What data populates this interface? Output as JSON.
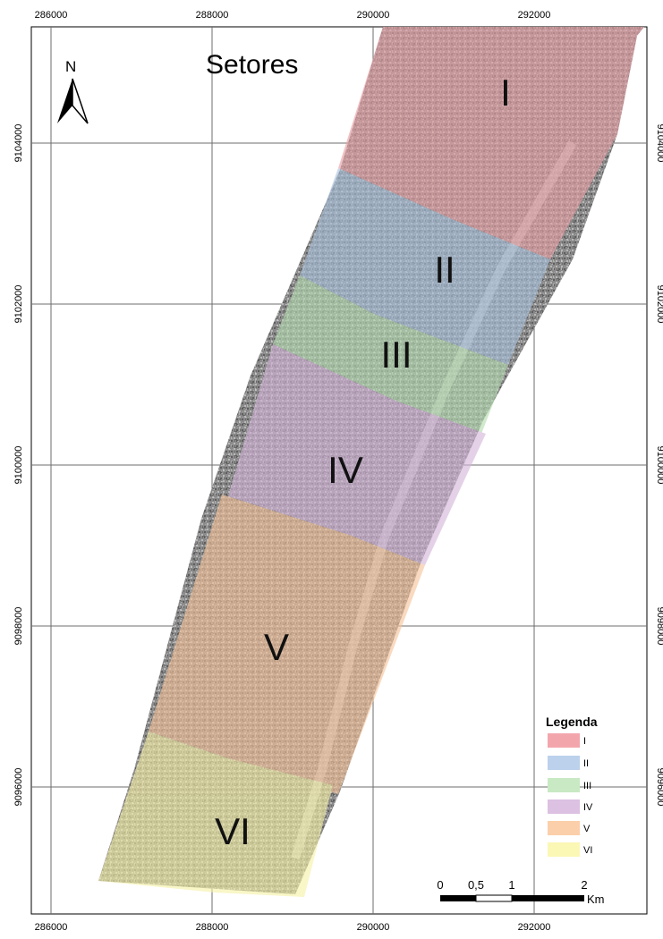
{
  "title": "Setores",
  "north_arrow": {
    "label": "N",
    "icon": "north-arrow-icon"
  },
  "grid": {
    "x_labels": [
      "286000",
      "288000",
      "290000",
      "292000"
    ],
    "y_labels": [
      "9104000",
      "9102000",
      "9100000",
      "9098000",
      "9096000"
    ]
  },
  "sectors": [
    {
      "label": "I",
      "color": "#e8a0a4"
    },
    {
      "label": "II",
      "color": "#a9c1dc"
    },
    {
      "label": "III",
      "color": "#b5dcb0"
    },
    {
      "label": "IV",
      "color": "#d4b5d9"
    },
    {
      "label": "V",
      "color": "#f5c39a"
    },
    {
      "label": "VI",
      "color": "#f6f0a6"
    }
  ],
  "legend": {
    "title": "Legenda",
    "items": [
      {
        "label": "I",
        "color": "#f2a6ac"
      },
      {
        "label": "II",
        "color": "#bcd1ec"
      },
      {
        "label": "III",
        "color": "#c8e9c3"
      },
      {
        "label": "IV",
        "color": "#dcc1e2"
      },
      {
        "label": "V",
        "color": "#fbcfaa"
      },
      {
        "label": "VI",
        "color": "#fbf7b5"
      }
    ]
  },
  "scale_bar": {
    "ticks": [
      "0",
      "0,5",
      "1",
      "2"
    ],
    "unit": "Km"
  }
}
